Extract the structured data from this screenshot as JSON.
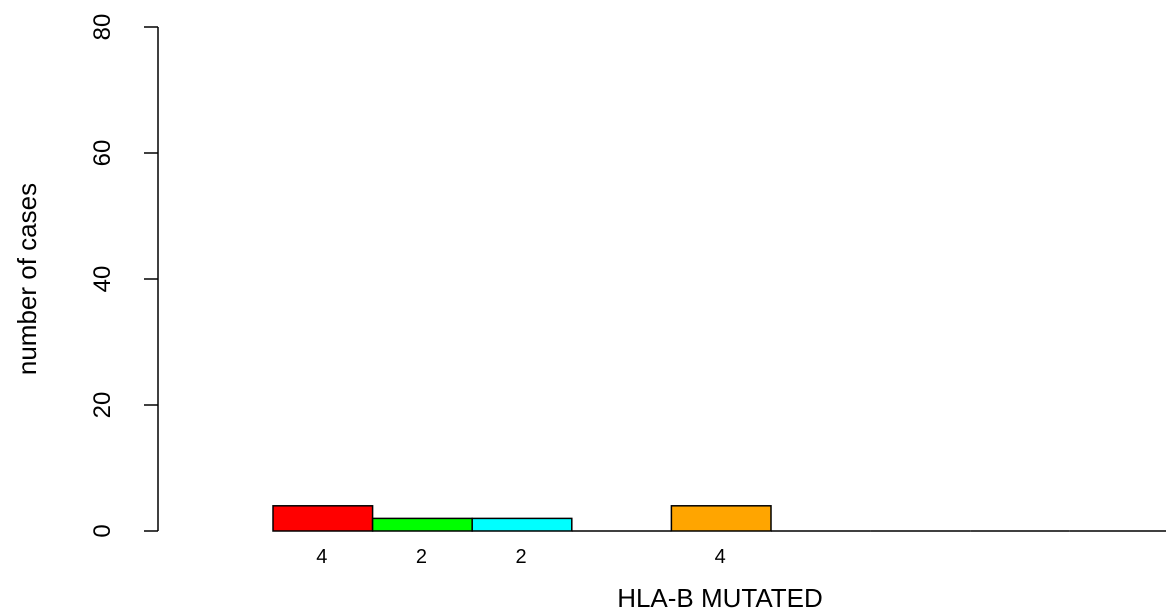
{
  "chart_data": {
    "type": "bar",
    "title": "",
    "xlabel": "HLA-B MUTATED",
    "ylabel": "number of cases",
    "ylim": [
      0,
      80
    ],
    "yticks": [
      0,
      20,
      40,
      60,
      80
    ],
    "grid": false,
    "legend": "none",
    "values": [
      4,
      2,
      2,
      0,
      4,
      0,
      0,
      0,
      0
    ],
    "labels": [
      "4",
      "2",
      "2",
      "",
      "4",
      "",
      "",
      "",
      ""
    ],
    "colors": [
      "#ff0000",
      "#00ff00",
      "#00ffff",
      "#ffffff",
      "#ffa500",
      "#ffffff",
      "#ffffff",
      "#ffffff",
      "#ffffff"
    ]
  }
}
